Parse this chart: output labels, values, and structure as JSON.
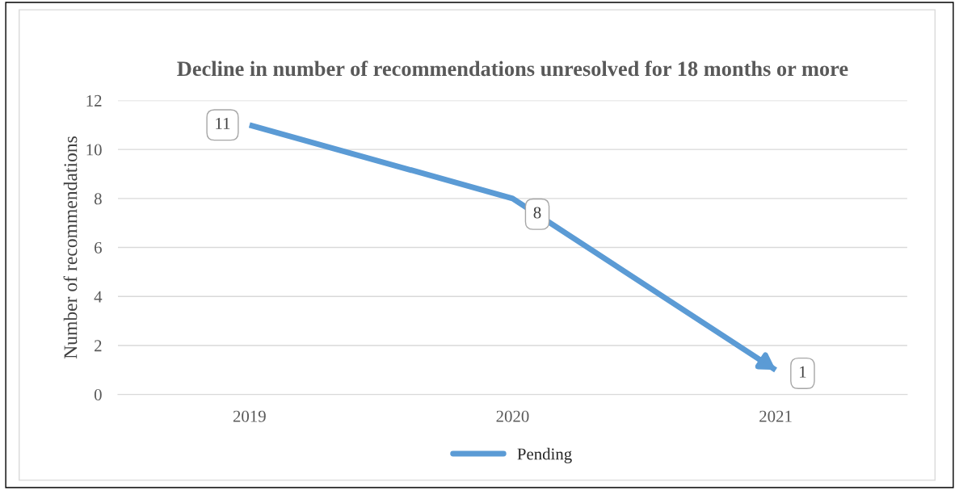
{
  "chart_data": {
    "type": "line",
    "title": "Decline in number of recommendations unresolved for 18 months or more",
    "ylabel": "Number of recommendations",
    "categories": [
      "2019",
      "2020",
      "2021"
    ],
    "series": [
      {
        "name": "Pending",
        "color": "#5b9bd5",
        "values": [
          11,
          8,
          1
        ]
      }
    ],
    "ylim": [
      0,
      12
    ],
    "yticks": [
      0,
      2,
      4,
      6,
      8,
      10,
      12
    ],
    "grid": "y",
    "legend": "bottom",
    "data_labels": true,
    "marker": "none",
    "line_style": "solid"
  }
}
